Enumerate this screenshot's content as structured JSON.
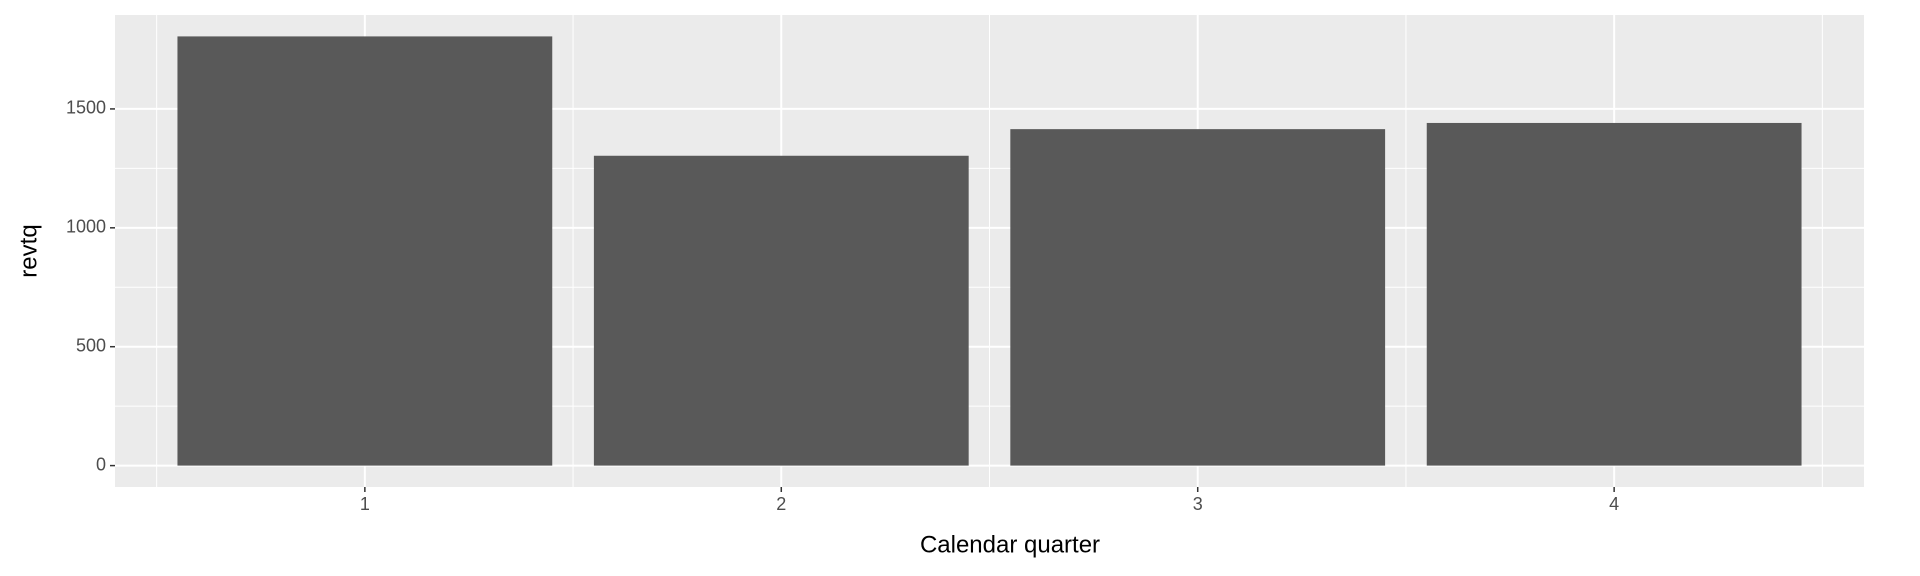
{
  "chart_data": {
    "type": "bar",
    "x_label": "Calendar quarter",
    "y_label": "revtq",
    "categories": [
      "1",
      "2",
      "3",
      "4"
    ],
    "values": [
      1805,
      1303,
      1415,
      1441
    ],
    "color": "#595959",
    "ylim": [
      -90,
      1895
    ],
    "yticks": [
      0,
      500,
      1000,
      1500
    ],
    "grid": true
  }
}
